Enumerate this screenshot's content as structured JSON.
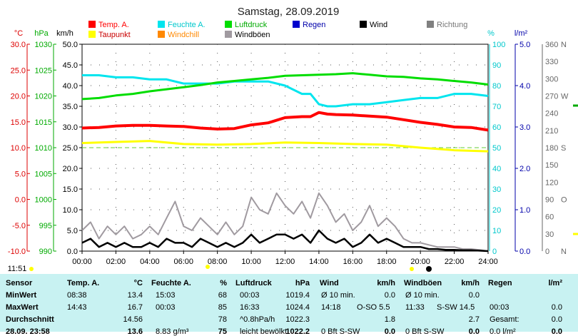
{
  "colors": {
    "temp": "#ff0000",
    "humidity": "#00e5ee",
    "pressure": "#00dd00",
    "dewpoint": "#ffff00",
    "windchill": "#ff8800",
    "gusts": "#a09aa0",
    "wind": "#000000",
    "rain": "#0000cc",
    "direction": "#808080",
    "temp_axis": "#dd0000",
    "pressure_axis": "#00aa00",
    "hum_axis": "#00c8cc",
    "rain_axis": "#0000aa",
    "dir_axis": "#666666",
    "stats_bg": "#c8f2f2",
    "ref_line": "#66cc33"
  },
  "chart_data": {
    "type": "line",
    "title": "Samstag, 28.09.2019",
    "x_unit_label": "",
    "x_ticks": [
      "00:00",
      "02:00",
      "04:00",
      "06:00",
      "08:00",
      "10:00",
      "12:00",
      "14:00",
      "16:00",
      "18:00",
      "20:00",
      "22:00",
      "24:00"
    ],
    "xlim": [
      0,
      24
    ],
    "wind_axis": {
      "unit": "km/h",
      "ticks": [
        "0.0",
        "5.0",
        "10.0",
        "15.0",
        "20.0",
        "25.0",
        "30.0",
        "35.0",
        "40.0",
        "45.0",
        "50.0"
      ],
      "range": [
        0,
        50
      ]
    },
    "temp_axis": {
      "unit": "°C",
      "ticks": [
        "-10.0",
        "-5.0",
        "0.0",
        "5.0",
        "10.0",
        "15.0",
        "20.0",
        "25.0",
        "30.0"
      ],
      "range": [
        -10,
        30
      ]
    },
    "pressure_axis": {
      "unit": "hPa",
      "ticks": [
        "990",
        "995",
        "1000",
        "1005",
        "1010",
        "1015",
        "1020",
        "1025",
        "1030"
      ],
      "range": [
        990,
        1030
      ]
    },
    "humidity_axis": {
      "unit": "%",
      "ticks": [
        "0",
        "10",
        "20",
        "30",
        "40",
        "50",
        "60",
        "70",
        "80",
        "90",
        "100"
      ],
      "range": [
        0,
        100
      ]
    },
    "rain_axis": {
      "unit": "l/m²",
      "ticks": [
        "0.0",
        "1.0",
        "2.0",
        "3.0",
        "4.0",
        "5.0"
      ],
      "range": [
        0,
        5
      ]
    },
    "direction_axis": {
      "ticks": [
        "0",
        "30",
        "60",
        "90",
        "120",
        "150",
        "180",
        "210",
        "240",
        "270",
        "300",
        "330",
        "360"
      ],
      "letters": [
        {
          "label": "N",
          "deg": 0
        },
        {
          "label": "O",
          "deg": 90
        },
        {
          "label": "S",
          "deg": 180
        },
        {
          "label": "W",
          "deg": 270
        },
        {
          "label": "N",
          "deg": 360
        }
      ],
      "range": [
        0,
        360
      ]
    },
    "legend": [
      {
        "label": "Temp. A.",
        "key": "temp"
      },
      {
        "label": "Feuchte A.",
        "key": "humidity"
      },
      {
        "label": "Luftdruck",
        "key": "pressure"
      },
      {
        "label": "Regen",
        "key": "rain"
      },
      {
        "label": "Wind",
        "key": "wind"
      },
      {
        "label": "Richtung",
        "key": "direction"
      },
      {
        "label": "Taupunkt",
        "key": "dewpoint"
      },
      {
        "label": "Windchill",
        "key": "windchill"
      },
      {
        "label": "Windböen",
        "key": "gusts"
      }
    ],
    "series": [
      {
        "name": "Temp. A.",
        "axis": "temp",
        "x": [
          0,
          1,
          2,
          3,
          4,
          5,
          6,
          7,
          8,
          9,
          10,
          11,
          12,
          13,
          13.5,
          14,
          14.5,
          15,
          16,
          17,
          18,
          19,
          20,
          21,
          22,
          23,
          24
        ],
        "values": [
          13.8,
          13.9,
          14.2,
          14.3,
          14.3,
          14.2,
          14.1,
          13.8,
          13.6,
          13.7,
          14.4,
          14.8,
          15.8,
          16.0,
          16.0,
          16.8,
          16.5,
          16.4,
          16.3,
          16.1,
          15.9,
          15.4,
          14.9,
          14.5,
          14.0,
          13.9,
          13.4
        ]
      },
      {
        "name": "Feuchte A.",
        "axis": "humidity",
        "x": [
          0,
          1,
          2,
          3,
          4,
          5,
          6,
          7,
          8,
          9,
          10,
          11,
          12,
          13,
          13.5,
          14,
          14.5,
          15,
          16,
          17,
          18,
          19,
          20,
          21,
          22,
          23,
          24
        ],
        "values": [
          85,
          85,
          84,
          84,
          83,
          83,
          81,
          81,
          81,
          82,
          82,
          82,
          80,
          76,
          76,
          71,
          70,
          70,
          71,
          71,
          72,
          73,
          74,
          74,
          76,
          76,
          75
        ]
      },
      {
        "name": "Luftdruck",
        "axis": "pressure",
        "x": [
          0,
          1,
          2,
          3,
          4,
          5,
          6,
          7,
          8,
          9,
          10,
          11,
          12,
          13,
          14,
          15,
          16,
          17,
          18,
          19,
          20,
          21,
          22,
          23,
          24
        ],
        "values": [
          1019.4,
          1019.6,
          1020.1,
          1020.4,
          1020.9,
          1021.3,
          1021.7,
          1022.1,
          1022.6,
          1022.9,
          1023.2,
          1023.5,
          1023.9,
          1024.0,
          1024.1,
          1024.2,
          1024.4,
          1024.1,
          1023.8,
          1023.7,
          1023.4,
          1023.2,
          1022.9,
          1022.6,
          1022.2
        ]
      },
      {
        "name": "Taupunkt",
        "axis": "temp",
        "x": [
          0,
          2,
          4,
          6,
          8,
          10,
          12,
          14,
          16,
          18,
          20,
          22,
          24
        ],
        "values": [
          10.9,
          11.1,
          11.3,
          10.7,
          10.6,
          10.7,
          11.0,
          10.9,
          10.7,
          10.6,
          10.0,
          9.5,
          9.3
        ]
      },
      {
        "name": "Wind",
        "axis": "wind",
        "x": [
          0,
          0.5,
          1,
          1.5,
          2,
          2.5,
          3,
          3.5,
          4,
          4.5,
          5,
          5.5,
          6,
          6.5,
          7,
          7.5,
          8,
          8.5,
          9,
          9.5,
          10,
          10.5,
          11,
          11.5,
          12,
          12.5,
          13,
          13.5,
          14,
          14.5,
          15,
          15.5,
          16,
          16.5,
          17,
          17.5,
          18,
          18.5,
          19,
          19.5,
          20,
          20.5,
          21,
          21.5,
          22,
          22.5,
          23,
          23.5,
          24
        ],
        "values": [
          2,
          3,
          1,
          2,
          1,
          2,
          1,
          1,
          2,
          1,
          3,
          2,
          2,
          1,
          3,
          2,
          1,
          2,
          1,
          2,
          4,
          2,
          3,
          4,
          4,
          3,
          4,
          2,
          5,
          3,
          2,
          3,
          1,
          2,
          4,
          2,
          3,
          2,
          1,
          1,
          1,
          0.5,
          0.5,
          0.3,
          0.3,
          0.2,
          0.2,
          0.1,
          0
        ]
      },
      {
        "name": "Windböen",
        "axis": "wind",
        "x": [
          0,
          0.5,
          1,
          1.5,
          2,
          2.5,
          3,
          3.5,
          4,
          4.5,
          5,
          5.5,
          6,
          6.5,
          7,
          7.5,
          8,
          8.5,
          9,
          9.5,
          10,
          10.5,
          11,
          11.5,
          12,
          12.5,
          13,
          13.5,
          14,
          14.5,
          15,
          15.5,
          16,
          16.5,
          17,
          17.5,
          18,
          18.5,
          19,
          19.5,
          20,
          20.5,
          21,
          21.5,
          22,
          22.5,
          23,
          23.5,
          24
        ],
        "values": [
          5,
          7,
          3,
          6,
          4,
          6,
          3,
          4,
          6,
          4,
          8,
          12,
          6,
          5,
          8,
          6,
          4,
          7,
          4,
          6,
          13,
          10,
          9,
          14,
          11,
          9,
          12,
          8,
          14,
          11,
          7,
          9,
          5,
          7,
          11,
          6,
          8,
          6,
          3,
          2,
          2,
          1.5,
          1,
          1,
          1,
          0.5,
          0.5,
          0.3,
          0
        ]
      }
    ],
    "reference_line": {
      "axis": "temp",
      "value": 10.0,
      "style": "dashed"
    },
    "extra_labels": {
      "left_time": "11:51",
      "right_time": "",
      "sun_markers": [
        "07:34",
        "19:23"
      ]
    }
  },
  "stats": {
    "headers": {
      "sensor": "Sensor",
      "temp": "Temp. A.",
      "temp_unit": "°C",
      "hum": "Feuchte A.",
      "hum_unit": "%",
      "press": "Luftdruck",
      "press_unit": "hPa",
      "wind": "Wind",
      "wind_unit": "km/h",
      "gust": "Windböen",
      "gust_unit": "km/h",
      "rain": "Regen",
      "rain_unit": "l/m²"
    },
    "rows": [
      {
        "label": "MinWert",
        "t_time": "08:38",
        "t_val": "13.4",
        "h_time": "15:03",
        "h_val": "68",
        "p_time": "00:03",
        "p_val": "1019.4",
        "w_a": "Ø 10 min.",
        "w_b": "",
        "w_val": "0.0",
        "g_a": "Ø 10 min.",
        "g_b": "",
        "g_val": "0.0",
        "r_time": "",
        "r_val": ""
      },
      {
        "label": "MaxWert",
        "t_time": "14:43",
        "t_val": "16.7",
        "h_time": "00:03",
        "h_val": "85",
        "p_time": "16:33",
        "p_val": "1024.4",
        "w_a": "14:18",
        "w_b": "O-SO 5.5",
        "w_val": "",
        "g_a": "11:33",
        "g_b": "S-SW 14.5",
        "g_val": "",
        "r_time": "00:03",
        "r_val": "0.0"
      },
      {
        "label": "Durchschnitt",
        "t_time": "",
        "t_val": "14.56",
        "h_time": "",
        "h_val": "78",
        "p_time": "^0.8hPa/h",
        "p_val": "1022.3",
        "w_a": "",
        "w_b": "",
        "w_val": "1.8",
        "g_a": "",
        "g_b": "",
        "g_val": "2.7",
        "r_time": "Gesamt:",
        "r_val": "0.0"
      },
      {
        "label": "28.09. 23:58",
        "t_time": "",
        "t_val": "13.6",
        "h_time": "8.83 g/m³",
        "h_val": "75",
        "p_time": "leicht bewölkt",
        "p_val": "1022.2",
        "w_a": "0 Bft S-SW",
        "w_b": "",
        "w_val": "0.0",
        "g_a": "0 Bft S-SW",
        "g_b": "",
        "g_val": "0.0",
        "r_time": "0.0 l/m²",
        "r_val": "0.0"
      }
    ]
  }
}
